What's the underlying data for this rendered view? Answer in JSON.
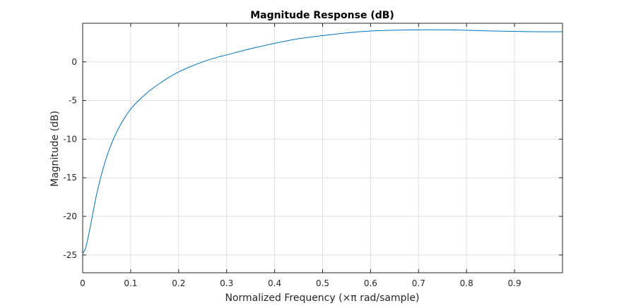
{
  "chart_data": {
    "type": "line",
    "title": "Magnitude Response (dB)",
    "xlabel": "Normalized Frequency (×π rad/sample)",
    "ylabel": "Magnitude (dB)",
    "xlim": [
      0,
      1
    ],
    "ylim": [
      -27.3,
      5
    ],
    "xticks": [
      0,
      0.1,
      0.2,
      0.3,
      0.4,
      0.5,
      0.6,
      0.7,
      0.8,
      0.9
    ],
    "xtick_labels": [
      "0",
      "0.1",
      "0.2",
      "0.3",
      "0.4",
      "0.5",
      "0.6",
      "0.7",
      "0.8",
      "0.9"
    ],
    "yticks": [
      0,
      -5,
      -10,
      -15,
      -20,
      -25
    ],
    "ytick_labels": [
      "0",
      "-5",
      "-10",
      "-15",
      "-20",
      "-25"
    ],
    "grid": true,
    "line_color": "#0072bd",
    "series": [
      {
        "x": [
          0,
          0.005,
          0.01,
          0.015,
          0.02,
          0.025,
          0.03,
          0.04,
          0.05,
          0.06,
          0.07,
          0.08,
          0.09,
          0.1,
          0.12,
          0.14,
          0.16,
          0.18,
          0.2,
          0.225,
          0.25,
          0.275,
          0.3,
          0.35,
          0.4,
          0.45,
          0.5,
          0.55,
          0.6,
          0.65,
          0.7,
          0.75,
          0.8,
          0.85,
          0.9,
          0.95,
          1.0
        ],
        "y": [
          -24.8,
          -24.3,
          -23.1,
          -21.6,
          -20.0,
          -18.4,
          -16.9,
          -14.4,
          -12.3,
          -10.6,
          -9.2,
          -8.0,
          -7.0,
          -6.1,
          -4.8,
          -3.7,
          -2.8,
          -2.0,
          -1.3,
          -0.6,
          0.0,
          0.5,
          0.9,
          1.7,
          2.4,
          3.0,
          3.4,
          3.75,
          4.0,
          4.1,
          4.15,
          4.15,
          4.1,
          4.0,
          3.95,
          3.9,
          3.9
        ]
      }
    ]
  }
}
